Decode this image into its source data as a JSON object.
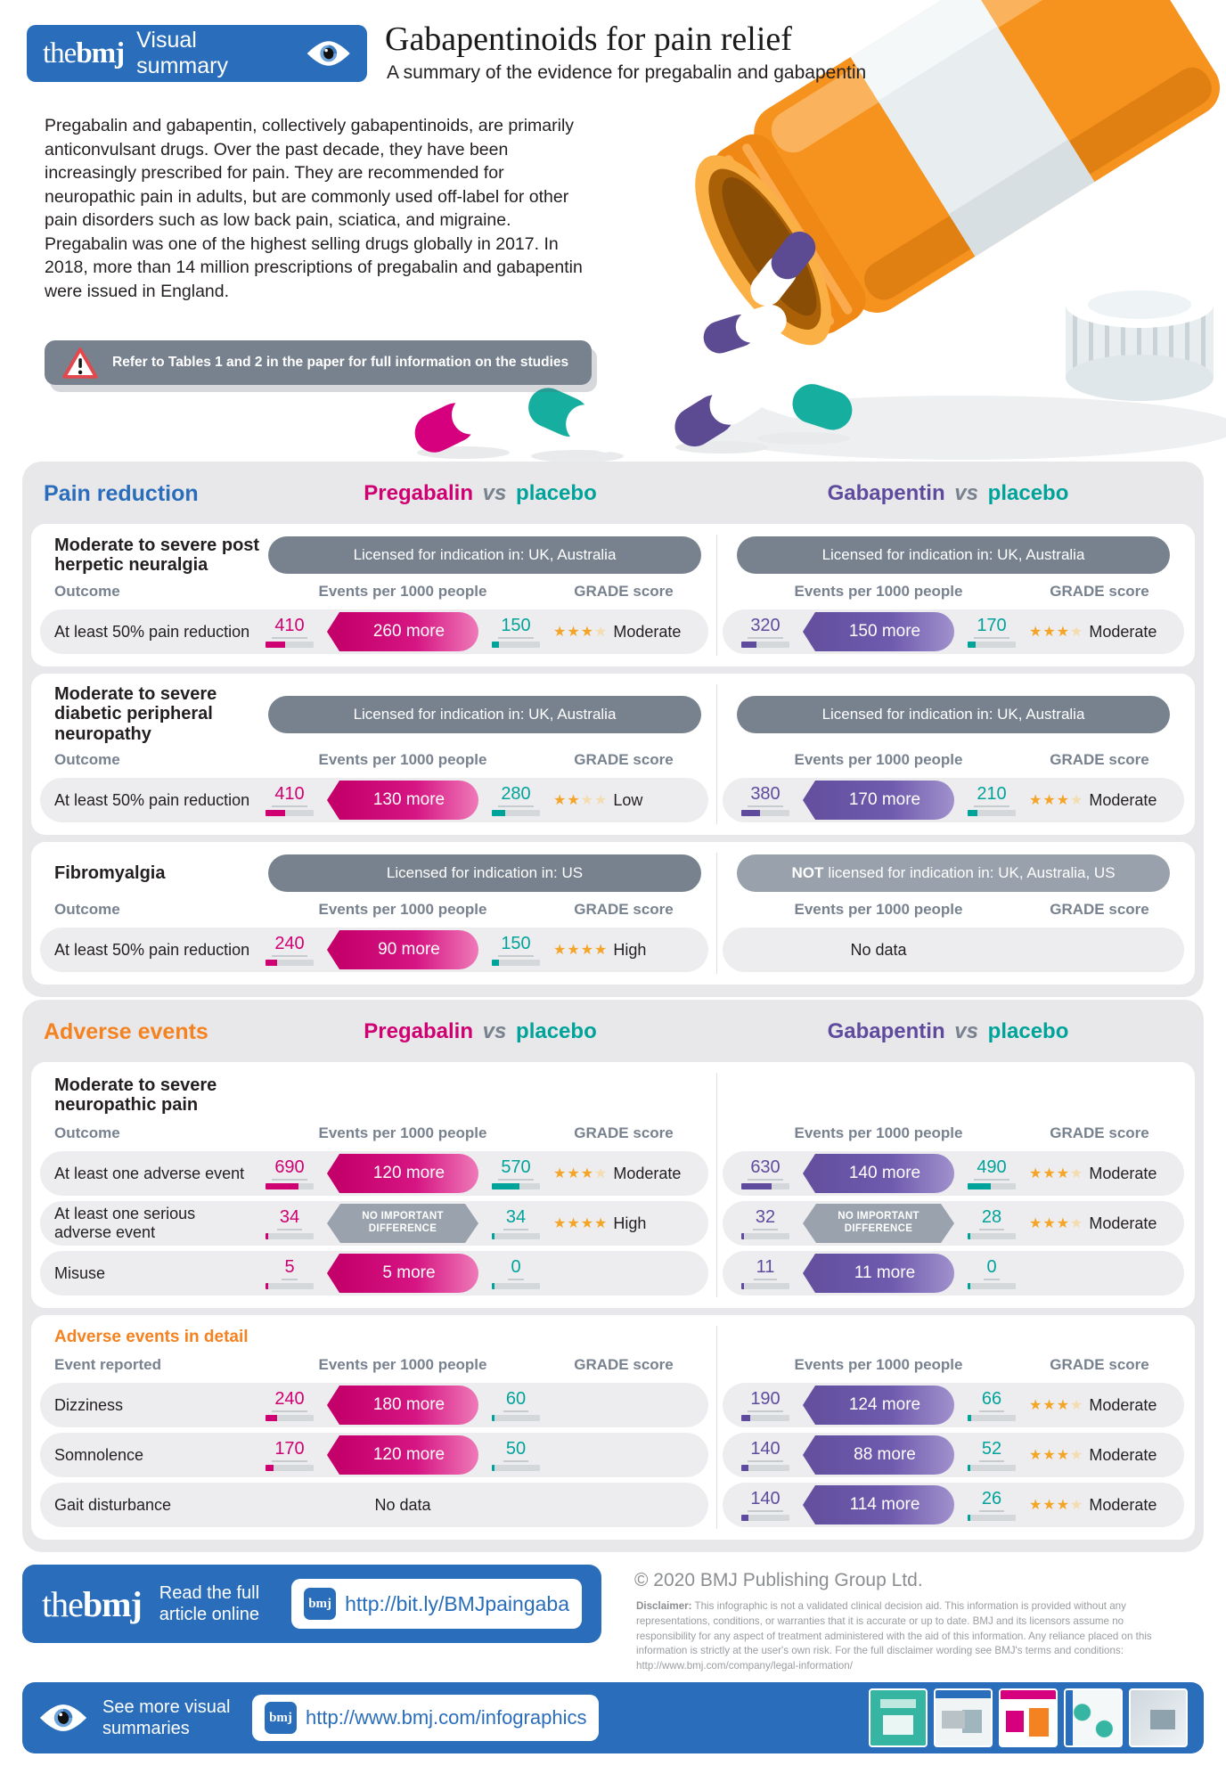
{
  "brand": {
    "the": "the",
    "bmj": "bmj",
    "visual_summary": "Visual summary"
  },
  "header": {
    "title": "Gabapentinoids for pain relief",
    "subtitle": "A summary of the evidence for pregabalin and gabapentin"
  },
  "intro": "Pregabalin and gabapentin, collectively gabapentinoids, are primarily anticonvulsant drugs. Over the past decade, they have been increasingly prescribed for pain. They are recommended for neuropathic pain in adults, but are commonly used off-label for other pain disorders such as low back pain, sciatica, and migraine. Pregabalin was one of the highest selling drugs globally in 2017. In 2018, more than 14 million prescriptions of pregabalin and gabapentin were issued in England.",
  "warning": "Refer to Tables 1 and 2 in the paper for full information on the studies",
  "labels": {
    "outcome": "Outcome",
    "event_reported": "Event reported",
    "events": "Events per 1000 people",
    "grade": "GRADE score",
    "pregabalin": "Pregabalin",
    "gabapentin": "Gabapentin",
    "vs": "vs",
    "placebo": "placebo",
    "nodiff_line1": "NO IMPORTANT",
    "nodiff_line2": "DIFFERENCE"
  },
  "colors": {
    "bmj_blue": "#2a6ebb",
    "pregabalin_pink": "#cf0072",
    "gabapentin_purple": "#5f4b9e",
    "placebo_teal": "#00a39a",
    "adverse_orange": "#f58220",
    "banner_slate": "#78828f",
    "star_gold": "#f4a427"
  },
  "pain": {
    "heading": "Pain reduction",
    "cards": [
      {
        "condition": "Moderate to severe post herpetic neuralgia",
        "preg_license": "Licensed for indication in: UK, Australia",
        "gab_license": "Licensed for indication in: UK, Australia",
        "row": {
          "outcome": "At least 50% pain reduction",
          "preg": {
            "from": "410",
            "effect": "260 more",
            "to": "150",
            "stars": 3,
            "grade": "Moderate"
          },
          "gab": {
            "from": "320",
            "effect": "150 more",
            "to": "170",
            "stars": 3,
            "grade": "Moderate"
          }
        }
      },
      {
        "condition": "Moderate to severe diabetic peripheral neuropathy",
        "preg_license": "Licensed for indication in: UK, Australia",
        "gab_license": "Licensed for indication in: UK, Australia",
        "row": {
          "outcome": "At least 50% pain reduction",
          "preg": {
            "from": "410",
            "effect": "130 more",
            "to": "280",
            "stars": 2,
            "grade": "Low"
          },
          "gab": {
            "from": "380",
            "effect": "170 more",
            "to": "210",
            "stars": 3,
            "grade": "Moderate"
          }
        }
      },
      {
        "condition": "Fibromyalgia",
        "preg_license": "Licensed for indication in: US",
        "gab_license_not": "NOT",
        "gab_license_rest": "licensed for indication in: UK, Australia, US",
        "row": {
          "outcome": "At least 50% pain reduction",
          "preg": {
            "from": "240",
            "effect": "90 more",
            "to": "150",
            "stars": 4,
            "grade": "High"
          },
          "gab": {
            "no_data": "No data"
          }
        }
      }
    ]
  },
  "adverse": {
    "heading": "Adverse events",
    "condition": "Moderate to severe neuropathic pain",
    "rows": [
      {
        "outcome": "At least one adverse event",
        "preg": {
          "from": "690",
          "effect": "120 more",
          "to": "570",
          "stars": 3,
          "grade": "Moderate"
        },
        "gab": {
          "from": "630",
          "effect": "140 more",
          "to": "490",
          "stars": 3,
          "grade": "Moderate"
        }
      },
      {
        "outcome": "At least one serious adverse event",
        "preg": {
          "from": "34",
          "to": "34",
          "stars": 4,
          "grade": "High"
        },
        "gab": {
          "from": "32",
          "to": "28",
          "stars": 3,
          "grade": "Moderate"
        }
      },
      {
        "outcome": "Misuse",
        "preg": {
          "from": "5",
          "effect": "5 more",
          "to": "0"
        },
        "gab": {
          "from": "11",
          "effect": "11 more",
          "to": "0"
        }
      }
    ],
    "detail_heading": "Adverse events in detail",
    "detail_rows": [
      {
        "outcome": "Dizziness",
        "preg": {
          "from": "240",
          "effect": "180 more",
          "to": "60"
        },
        "gab": {
          "from": "190",
          "effect": "124 more",
          "to": "66",
          "stars": 3,
          "grade": "Moderate"
        }
      },
      {
        "outcome": "Somnolence",
        "preg": {
          "from": "170",
          "effect": "120 more",
          "to": "50"
        },
        "gab": {
          "from": "140",
          "effect": "88 more",
          "to": "52",
          "stars": 3,
          "grade": "Moderate"
        }
      },
      {
        "outcome": "Gait disturbance",
        "preg": {
          "no_data": "No data"
        },
        "gab": {
          "from": "140",
          "effect": "114 more",
          "to": "26",
          "stars": 3,
          "grade": "Moderate"
        }
      }
    ]
  },
  "footer": {
    "read_full": "Read the full article online",
    "article_url": "http://bit.ly/BMJpaingaba",
    "copyright": "© 2020 BMJ Publishing Group Ltd.",
    "disclaimer_lead": "Disclaimer:",
    "disclaimer": " This infographic is not a validated clinical decision aid. This information is provided without any representations, conditions, or warranties that it is accurate or up to date. BMJ and its licensors assume no responsibility for any aspect of treatment administered with the aid of this information. Any reliance placed on this information is strictly at the user's own risk. For the full disclaimer wording see BMJ's terms and conditions: http://www.bmj.com/company/legal-information/",
    "see_more": "See more visual summaries",
    "infographics_url": "http://www.bmj.com/infographics"
  }
}
